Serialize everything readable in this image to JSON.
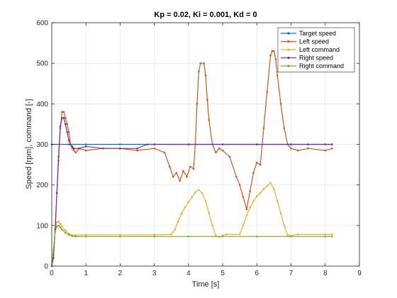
{
  "chart_data": {
    "type": "line",
    "title": "Kp = 0.02, Ki = 0.001, Kd = 0",
    "xlabel": "Time [s]",
    "ylabel": "Speed [rpm], command [-]",
    "xlim": [
      0,
      9
    ],
    "ylim": [
      0,
      600
    ],
    "xticks": [
      0,
      1,
      2,
      3,
      4,
      5,
      6,
      7,
      8,
      9
    ],
    "yticks": [
      0,
      100,
      200,
      300,
      400,
      500,
      600
    ],
    "grid": true,
    "legend_position": "top-right",
    "series": [
      {
        "name": "Target speed",
        "color": "#0072BD",
        "x": [
          0,
          0.5,
          1,
          2,
          3,
          4,
          5,
          6,
          7,
          8,
          8.2
        ],
        "y": [
          300,
          300,
          300,
          300,
          300,
          300,
          300,
          300,
          300,
          300,
          300
        ]
      },
      {
        "name": "Left speed",
        "color": "#D95319",
        "x": [
          0,
          0.05,
          0.1,
          0.15,
          0.2,
          0.25,
          0.3,
          0.35,
          0.4,
          0.45,
          0.5,
          0.55,
          0.6,
          0.65,
          0.7,
          0.8,
          1.0,
          1.5,
          2.0,
          2.5,
          3.0,
          3.3,
          3.45,
          3.55,
          3.65,
          3.75,
          3.85,
          3.95,
          4.05,
          4.15,
          4.2,
          4.25,
          4.3,
          4.35,
          4.45,
          4.5,
          4.55,
          4.6,
          4.7,
          4.8,
          4.9,
          5.0,
          5.2,
          5.4,
          5.5,
          5.6,
          5.7,
          5.8,
          5.9,
          6.0,
          6.1,
          6.2,
          6.3,
          6.4,
          6.45,
          6.5,
          6.55,
          6.6,
          6.7,
          6.8,
          6.9,
          7.0,
          7.2,
          7.5,
          8.0,
          8.2
        ],
        "y": [
          0,
          20,
          90,
          180,
          260,
          340,
          380,
          380,
          365,
          350,
          330,
          300,
          290,
          285,
          280,
          290,
          285,
          290,
          290,
          285,
          290,
          280,
          245,
          220,
          230,
          210,
          235,
          220,
          245,
          240,
          300,
          400,
          480,
          500,
          500,
          470,
          410,
          360,
          300,
          280,
          290,
          285,
          270,
          220,
          200,
          170,
          140,
          185,
          230,
          255,
          250,
          340,
          430,
          520,
          530,
          530,
          510,
          470,
          400,
          340,
          300,
          290,
          285,
          290,
          285,
          290
        ]
      },
      {
        "name": "Left command",
        "color": "#EDB120",
        "x": [
          0,
          0.05,
          0.1,
          0.15,
          0.2,
          0.25,
          0.3,
          0.4,
          0.5,
          0.6,
          0.7,
          1.0,
          2.0,
          3.0,
          3.5,
          3.6,
          3.7,
          3.8,
          3.9,
          4.0,
          4.1,
          4.2,
          4.3,
          4.4,
          4.5,
          4.6,
          4.7,
          4.8,
          4.9,
          5.0,
          5.1,
          5.5,
          5.6,
          5.7,
          5.8,
          5.9,
          6.0,
          6.1,
          6.2,
          6.3,
          6.4,
          6.5,
          6.6,
          6.7,
          6.8,
          6.9,
          7.0,
          7.2,
          8.0,
          8.2
        ],
        "y": [
          0,
          40,
          90,
          108,
          110,
          104,
          97,
          88,
          80,
          76,
          76,
          77,
          77,
          77,
          78,
          90,
          110,
          130,
          145,
          158,
          170,
          182,
          188,
          180,
          160,
          130,
          100,
          74,
          72,
          75,
          78,
          78,
          100,
          125,
          145,
          160,
          172,
          180,
          190,
          198,
          205,
          190,
          160,
          130,
          100,
          76,
          75,
          78,
          78,
          78
        ]
      },
      {
        "name": "Right speed",
        "color": "#7E2F8E",
        "x": [
          0,
          0.05,
          0.1,
          0.15,
          0.2,
          0.25,
          0.3,
          0.35,
          0.4,
          0.45,
          0.5,
          0.55,
          0.6,
          0.65,
          0.8,
          1.0,
          1.5,
          2.0,
          2.5,
          2.8,
          3.0,
          4.0,
          5.0,
          6.0,
          7.0,
          7.5,
          8.0,
          8.2
        ],
        "y": [
          0,
          20,
          90,
          180,
          270,
          345,
          365,
          365,
          350,
          330,
          310,
          300,
          295,
          290,
          290,
          295,
          290,
          290,
          290,
          300,
          300,
          300,
          300,
          300,
          300,
          300,
          300,
          300
        ]
      },
      {
        "name": "Right command",
        "color": "#77AC30",
        "x": [
          0,
          0.05,
          0.1,
          0.15,
          0.2,
          0.25,
          0.3,
          0.4,
          0.5,
          0.6,
          0.7,
          1.0,
          2.0,
          3.0,
          4.0,
          5.0,
          6.0,
          7.0,
          8.0,
          8.2
        ],
        "y": [
          0,
          40,
          85,
          98,
          100,
          95,
          90,
          82,
          77,
          74,
          73,
          73,
          73,
          73,
          73,
          73,
          73,
          73,
          73,
          73
        ]
      }
    ]
  }
}
